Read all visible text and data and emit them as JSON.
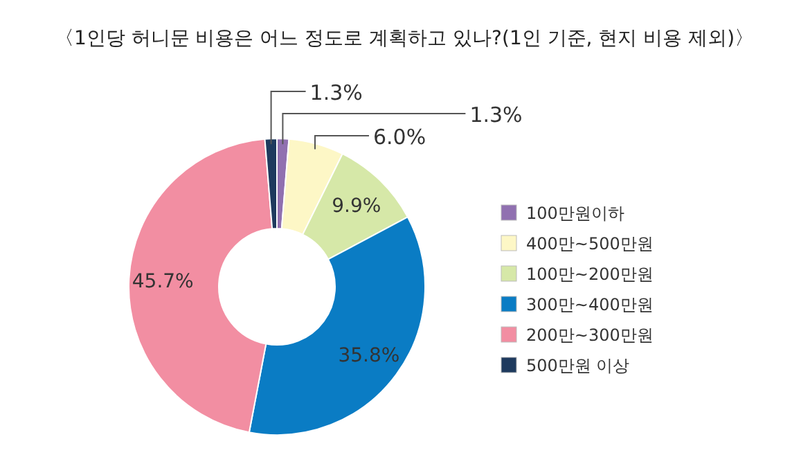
{
  "chart_data": {
    "type": "donut",
    "title": "〈1인당 허니문 비용은 어느 정도로 계획하고 있나?(1인 기준, 현지 비용 제외)〉",
    "categories": [
      "100만원이하",
      "400만~500만원",
      "100만~200만원",
      "300만~400만원",
      "200만~300만원",
      "500만원 이상"
    ],
    "values": [
      1.3,
      6.0,
      9.9,
      35.8,
      45.7,
      1.3
    ],
    "value_labels": [
      "1.3%",
      "6.0%",
      "9.9%",
      "35.8%",
      "45.7%",
      "1.3%"
    ],
    "colors": [
      "#9070b0",
      "#fdf7c6",
      "#d6e8a8",
      "#0a7cc4",
      "#f28ea2",
      "#1e3a5e"
    ],
    "legend": "right"
  }
}
